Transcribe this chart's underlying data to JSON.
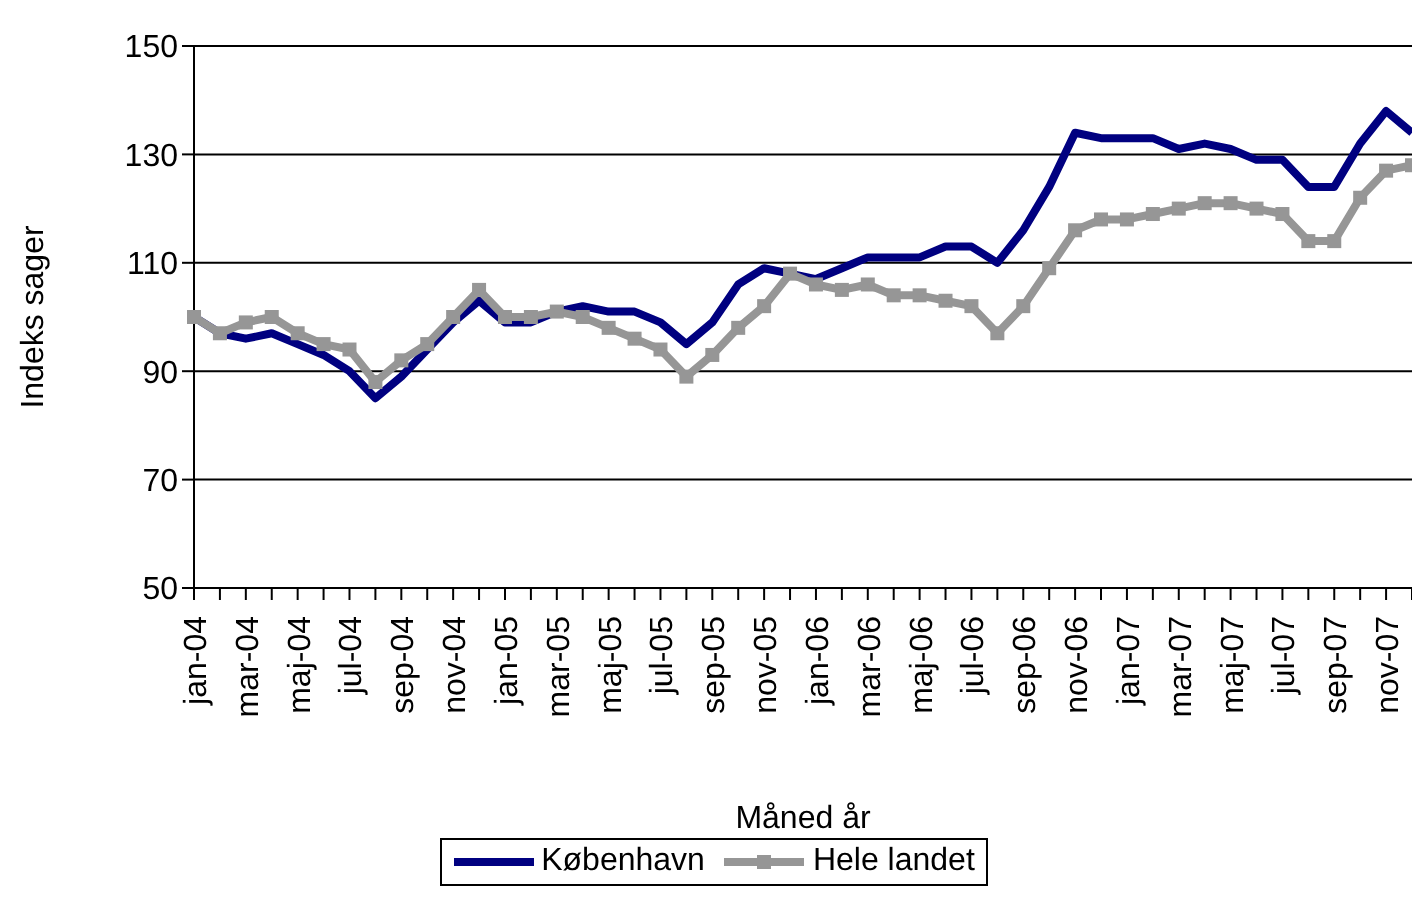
{
  "chart_data": {
    "type": "line",
    "xlabel": "Måned år",
    "ylabel": "Indeks sager",
    "categories": [
      "jan-04",
      null,
      "mar-04",
      null,
      "maj-04",
      null,
      "jul-04",
      null,
      "sep-04",
      null,
      "nov-04",
      null,
      "jan-05",
      null,
      "mar-05",
      null,
      "maj-05",
      null,
      "jul-05",
      null,
      "sep-05",
      null,
      "nov-05",
      null,
      "jan-06",
      null,
      "mar-06",
      null,
      "maj-06",
      null,
      "jul-06",
      null,
      "sep-06",
      null,
      "nov-06",
      null,
      "jan-07",
      null,
      "mar-07",
      null,
      "maj-07",
      null,
      "jul-07",
      null,
      "sep-07",
      null,
      "nov-07",
      null
    ],
    "series": [
      {
        "name": "København",
        "color": "#000080",
        "marker": "none",
        "values": [
          100,
          97,
          96,
          97,
          95,
          93,
          90,
          85,
          89,
          94,
          99,
          103,
          99,
          99,
          101,
          102,
          101,
          101,
          99,
          95,
          99,
          106,
          109,
          108,
          107,
          109,
          111,
          111,
          111,
          113,
          113,
          110,
          116,
          124,
          134,
          133,
          133,
          133,
          131,
          132,
          131,
          129,
          129,
          124,
          124,
          132,
          138,
          134
        ]
      },
      {
        "name": "Hele landet",
        "color": "#969696",
        "marker": "square",
        "values": [
          100,
          97,
          99,
          100,
          97,
          95,
          94,
          88,
          92,
          95,
          100,
          105,
          100,
          100,
          101,
          100,
          98,
          96,
          94,
          89,
          93,
          98,
          102,
          108,
          106,
          105,
          106,
          104,
          104,
          103,
          102,
          97,
          102,
          109,
          116,
          118,
          118,
          119,
          120,
          121,
          121,
          120,
          119,
          114,
          114,
          122,
          127,
          128
        ]
      }
    ],
    "ylim": [
      50,
      150
    ],
    "yticks": [
      50,
      70,
      90,
      110,
      130,
      150
    ],
    "grid": "y",
    "legend": "bottom",
    "line_style": "solid"
  }
}
